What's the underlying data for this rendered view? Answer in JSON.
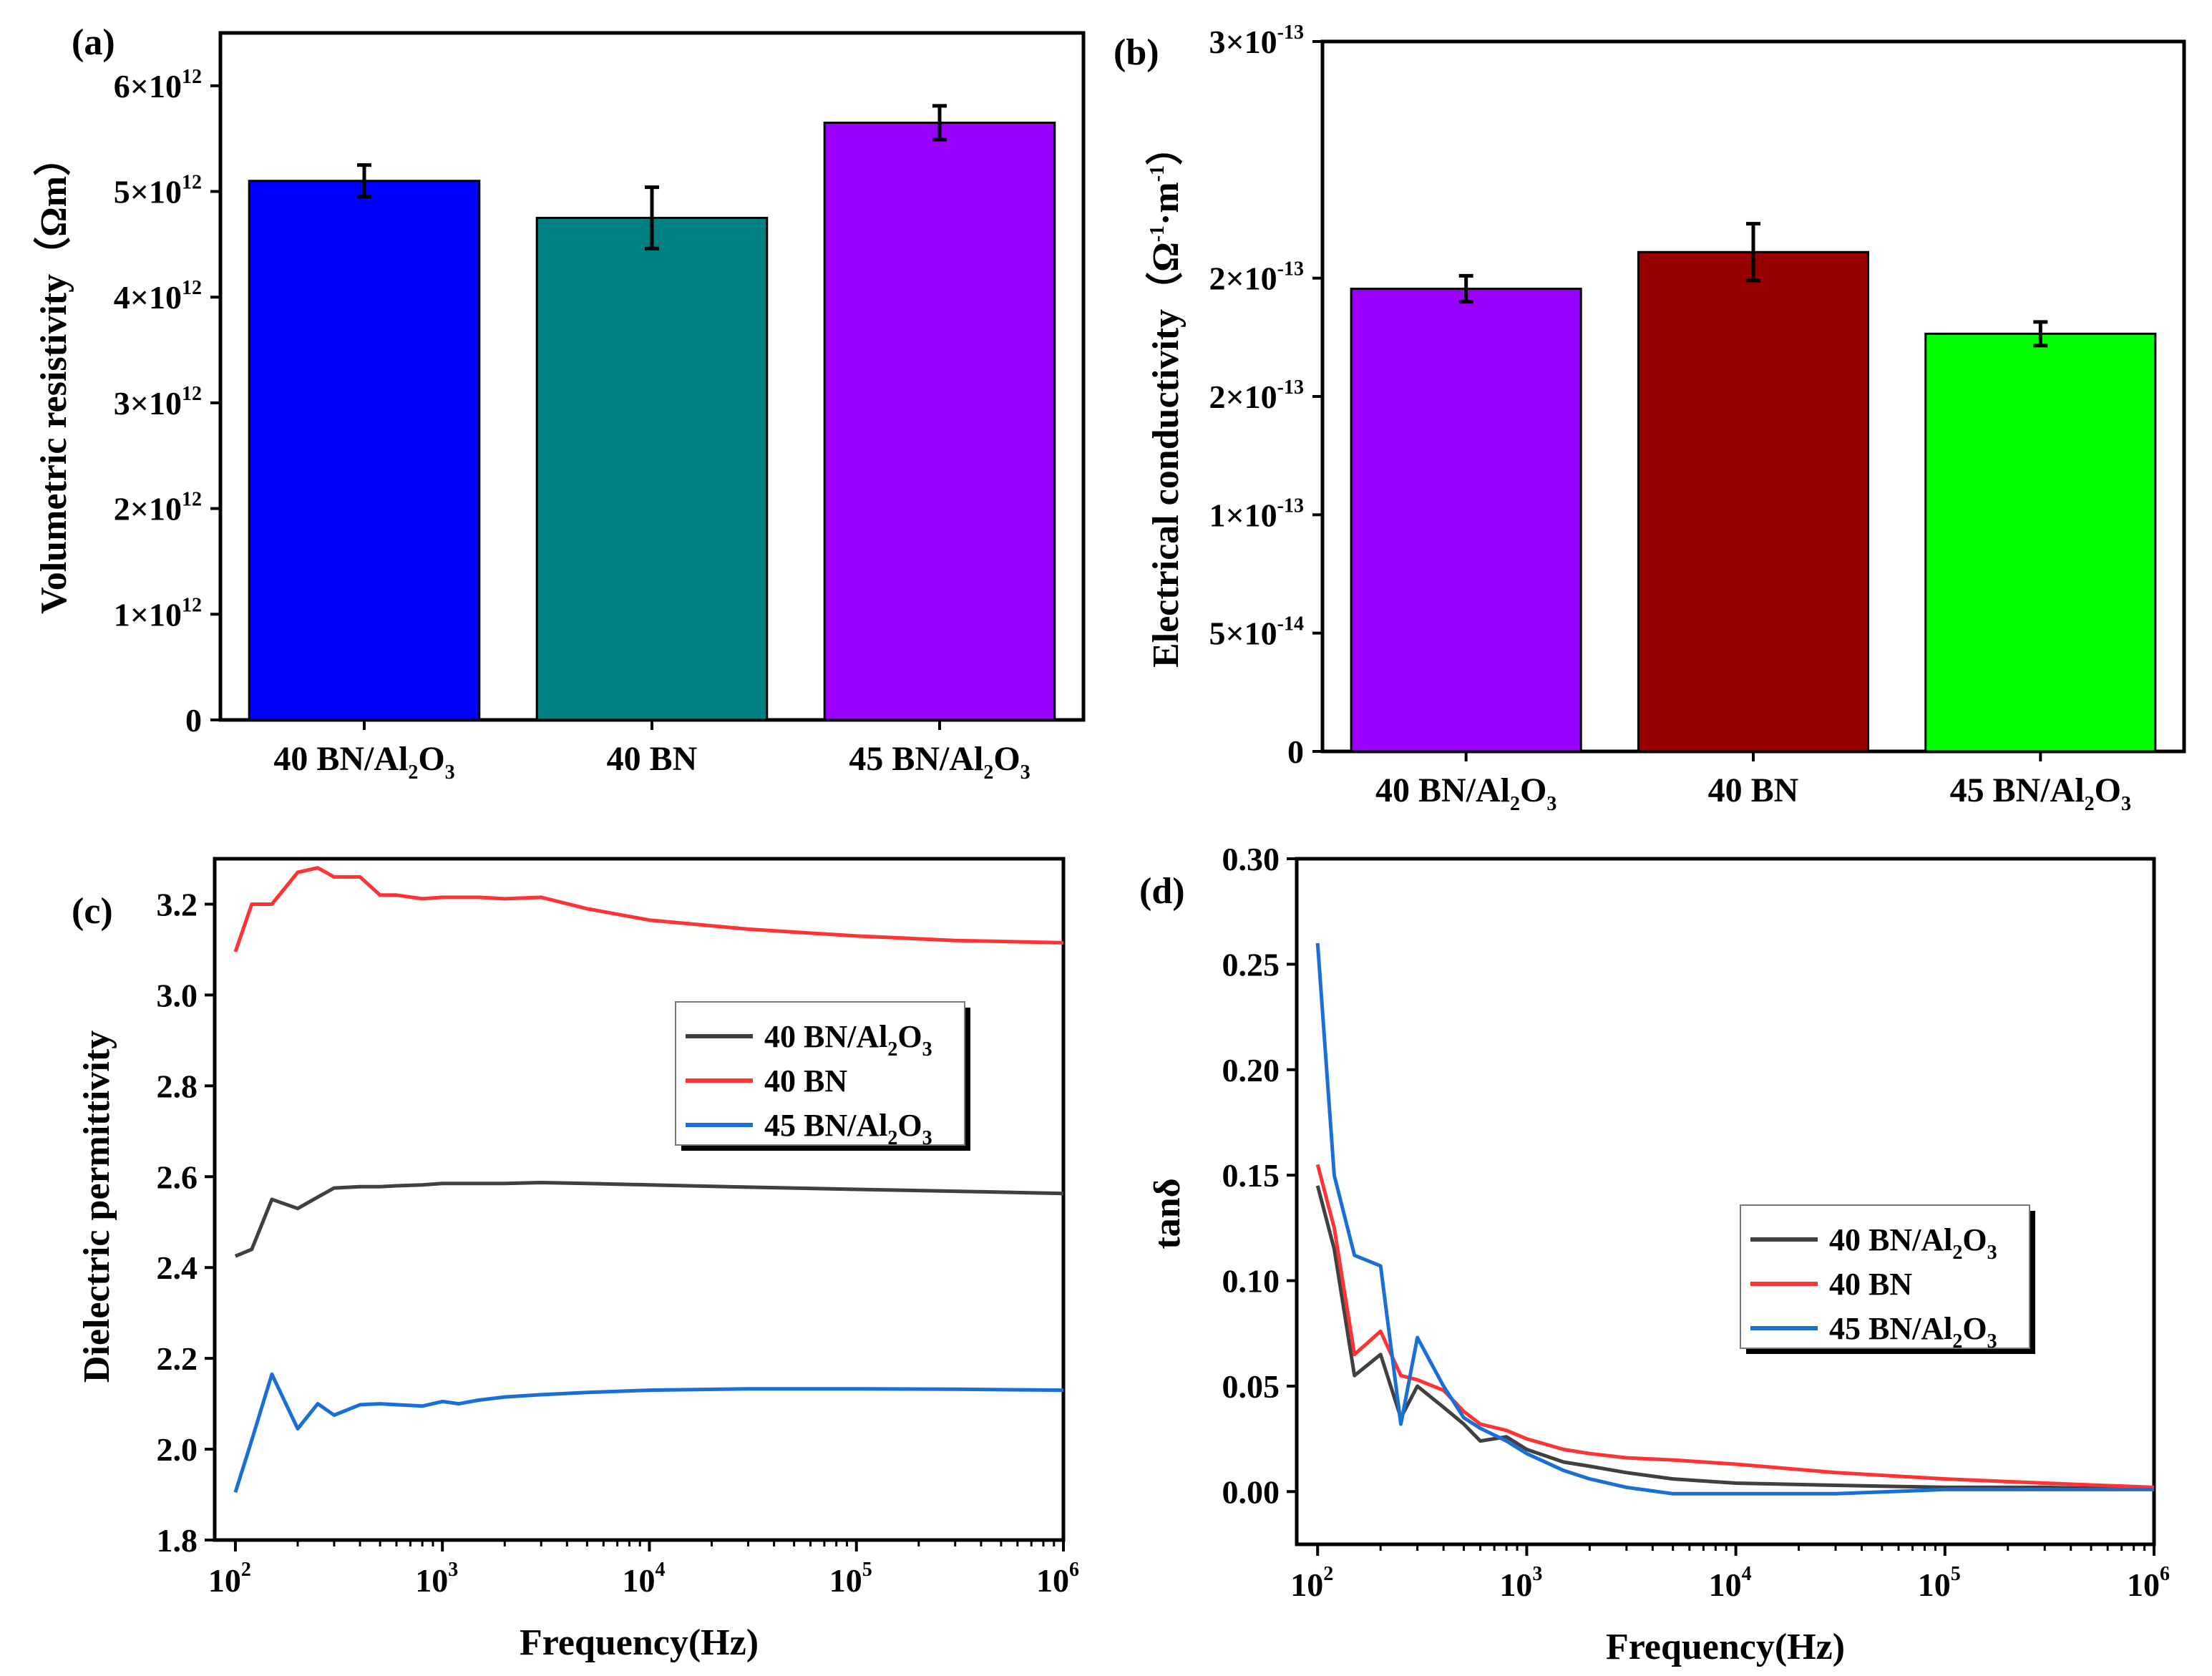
{
  "chart_data": [
    {
      "panel": "(a)",
      "type": "bar",
      "ylabel": "Volumetric resistivity（Ωm）",
      "ylim": [
        0,
        6500000000000.0
      ],
      "yticks": [
        {
          "value": 0,
          "text": "0",
          "exp": ""
        },
        {
          "value": 1000000000000.0,
          "text": "1×10",
          "exp": "12"
        },
        {
          "value": 2000000000000.0,
          "text": "2×10",
          "exp": "12"
        },
        {
          "value": 3000000000000.0,
          "text": "3×10",
          "exp": "12"
        },
        {
          "value": 4000000000000.0,
          "text": "4×10",
          "exp": "12"
        },
        {
          "value": 5000000000000.0,
          "text": "5×10",
          "exp": "12"
        },
        {
          "value": 6000000000000.0,
          "text": "6×10",
          "exp": "12"
        }
      ],
      "categories": [
        {
          "pre": "40 BN/Al",
          "s1": "2",
          "mid": "O",
          "s2": "3"
        },
        {
          "pre": "40 BN",
          "s1": "",
          "mid": "",
          "s2": ""
        },
        {
          "pre": "45 BN/Al",
          "s1": "2",
          "mid": "O",
          "s2": "3"
        }
      ],
      "values": [
        5100000000000.0,
        4750000000000.0,
        5650000000000.0
      ],
      "errors": [
        150000000000.0,
        290000000000.0,
        160000000000.0
      ],
      "colors": [
        "#0000ff",
        "#008080",
        "#9900ff"
      ]
    },
    {
      "panel": "(b)",
      "type": "bar",
      "ylabel": "Electrical conductivity（Ω⁻¹·m⁻¹）",
      "ylabel_parts": {
        "pre": "Electrical conductivity（Ω",
        "sup1": "-1",
        "mid": "·m",
        "sup2": "-1",
        "post": "）"
      },
      "ylim": [
        0,
        3e-13
      ],
      "yticks": [
        {
          "value": 0,
          "text": "0",
          "exp": ""
        },
        {
          "value": 5e-14,
          "text": "5×10",
          "exp": "-14"
        },
        {
          "value": 1e-13,
          "text": "1×10",
          "exp": "-13"
        },
        {
          "value": 1.5e-13,
          "text": "2×10",
          "exp": "-13"
        },
        {
          "value": 2e-13,
          "text": "2×10",
          "exp": "-13"
        },
        {
          "value": 3e-13,
          "text": "3×10",
          "exp": "-13"
        }
      ],
      "categories": [
        {
          "pre": "40 BN/Al",
          "s1": "2",
          "mid": "O",
          "s2": "3"
        },
        {
          "pre": "40 BN",
          "s1": "",
          "mid": "",
          "s2": ""
        },
        {
          "pre": "45 BN/Al",
          "s1": "2",
          "mid": "O",
          "s2": "3"
        }
      ],
      "values": [
        1.955e-13,
        2.11e-13,
        1.765e-13
      ],
      "errors": [
        5.5e-15,
        1.2e-14,
        5e-15
      ],
      "colors": [
        "#9900ff",
        "#990000",
        "#00ff00"
      ]
    },
    {
      "panel": "(c)",
      "type": "line",
      "xlabel": "Frequency(Hz)",
      "ylabel": "Dielectric permittivity",
      "xscale": "log",
      "xlim_log10": [
        1.9,
        6.0
      ],
      "ylim": [
        1.8,
        3.3
      ],
      "xticks": [
        {
          "log10": 2,
          "base": "10",
          "exp": "2"
        },
        {
          "log10": 3,
          "base": "10",
          "exp": "3"
        },
        {
          "log10": 4,
          "base": "10",
          "exp": "4"
        },
        {
          "log10": 5,
          "base": "10",
          "exp": "5"
        },
        {
          "log10": 6,
          "base": "10",
          "exp": "6"
        }
      ],
      "yticks": [
        "1.8",
        "2.0",
        "2.2",
        "2.4",
        "2.6",
        "2.8",
        "3.0",
        "3.2"
      ],
      "legend_position": "right-middle",
      "series": [
        {
          "name_pre": "40 BN/Al",
          "name_s1": "2",
          "name_mid": "O",
          "name_s2": "3",
          "color": "#404040",
          "x": [
            100,
            120,
            150,
            200,
            250,
            300,
            400,
            500,
            600,
            800,
            1000,
            1500,
            2000,
            3000,
            5000,
            10000,
            30000,
            100000,
            300000,
            1000000
          ],
          "y": [
            2.425,
            2.44,
            2.55,
            2.53,
            2.555,
            2.575,
            2.578,
            2.578,
            2.58,
            2.582,
            2.585,
            2.585,
            2.585,
            2.587,
            2.585,
            2.582,
            2.577,
            2.572,
            2.568,
            2.563
          ]
        },
        {
          "name_pre": "40 BN",
          "name_s1": "",
          "name_mid": "",
          "name_s2": "",
          "color": "#ff3333",
          "x": [
            100,
            120,
            150,
            200,
            250,
            300,
            400,
            500,
            600,
            800,
            1000,
            1500,
            2000,
            3000,
            5000,
            10000,
            30000,
            100000,
            300000,
            1000000
          ],
          "y": [
            3.095,
            3.2,
            3.2,
            3.27,
            3.28,
            3.26,
            3.26,
            3.22,
            3.22,
            3.212,
            3.215,
            3.215,
            3.212,
            3.215,
            3.19,
            3.165,
            3.145,
            3.13,
            3.12,
            3.115
          ]
        },
        {
          "name_pre": "45 BN/Al",
          "name_s1": "2",
          "name_mid": "O",
          "name_s2": "3",
          "color": "#1a6fd6",
          "x": [
            100,
            120,
            150,
            200,
            250,
            300,
            400,
            500,
            600,
            800,
            1000,
            1200,
            1500,
            2000,
            3000,
            5000,
            10000,
            30000,
            100000,
            300000,
            1000000
          ],
          "y": [
            1.905,
            2.02,
            2.165,
            2.045,
            2.1,
            2.075,
            2.098,
            2.1,
            2.098,
            2.095,
            2.105,
            2.1,
            2.108,
            2.115,
            2.12,
            2.125,
            2.13,
            2.133,
            2.133,
            2.132,
            2.13
          ]
        }
      ]
    },
    {
      "panel": "(d)",
      "type": "line",
      "xlabel": "Frequency(Hz)",
      "ylabel": "tanδ",
      "xscale": "log",
      "xlim_log10": [
        1.9,
        6.0
      ],
      "ylim": [
        -0.025,
        0.3
      ],
      "xticks": [
        {
          "log10": 2,
          "base": "10",
          "exp": "2"
        },
        {
          "log10": 3,
          "base": "10",
          "exp": "3"
        },
        {
          "log10": 4,
          "base": "10",
          "exp": "4"
        },
        {
          "log10": 5,
          "base": "10",
          "exp": "5"
        },
        {
          "log10": 6,
          "base": "10",
          "exp": "6"
        }
      ],
      "yticks": [
        "0.00",
        "0.05",
        "0.10",
        "0.15",
        "0.20",
        "0.25",
        "0.30"
      ],
      "legend_position": "right-middle",
      "series": [
        {
          "name_pre": "40 BN/Al",
          "name_s1": "2",
          "name_mid": "O",
          "name_s2": "3",
          "color": "#404040",
          "x": [
            100,
            120,
            150,
            200,
            250,
            300,
            400,
            500,
            600,
            800,
            1000,
            1500,
            2000,
            3000,
            5000,
            10000,
            30000,
            100000,
            300000,
            1000000
          ],
          "y": [
            0.145,
            0.115,
            0.055,
            0.065,
            0.035,
            0.05,
            0.04,
            0.032,
            0.024,
            0.026,
            0.02,
            0.014,
            0.012,
            0.009,
            0.006,
            0.004,
            0.003,
            0.002,
            0.002,
            0.001
          ]
        },
        {
          "name_pre": "40 BN",
          "name_s1": "",
          "name_mid": "",
          "name_s2": "",
          "color": "#ff3333",
          "x": [
            100,
            120,
            150,
            200,
            250,
            300,
            400,
            500,
            600,
            800,
            1000,
            1500,
            2000,
            3000,
            5000,
            10000,
            30000,
            100000,
            300000,
            1000000
          ],
          "y": [
            0.155,
            0.125,
            0.065,
            0.076,
            0.055,
            0.053,
            0.048,
            0.038,
            0.032,
            0.029,
            0.025,
            0.02,
            0.018,
            0.016,
            0.015,
            0.013,
            0.009,
            0.006,
            0.004,
            0.002
          ]
        },
        {
          "name_pre": "45 BN/Al",
          "name_s1": "2",
          "name_mid": "O",
          "name_s2": "3",
          "color": "#1a6fd6",
          "x": [
            100,
            120,
            150,
            200,
            250,
            300,
            400,
            500,
            600,
            800,
            1000,
            1500,
            2000,
            3000,
            5000,
            10000,
            30000,
            100000,
            300000,
            1000000
          ],
          "y": [
            0.26,
            0.15,
            0.112,
            0.107,
            0.032,
            0.073,
            0.05,
            0.035,
            0.03,
            0.024,
            0.018,
            0.01,
            0.006,
            0.002,
            -0.001,
            -0.001,
            -0.001,
            0.001,
            0.001,
            0.001
          ]
        }
      ]
    }
  ]
}
